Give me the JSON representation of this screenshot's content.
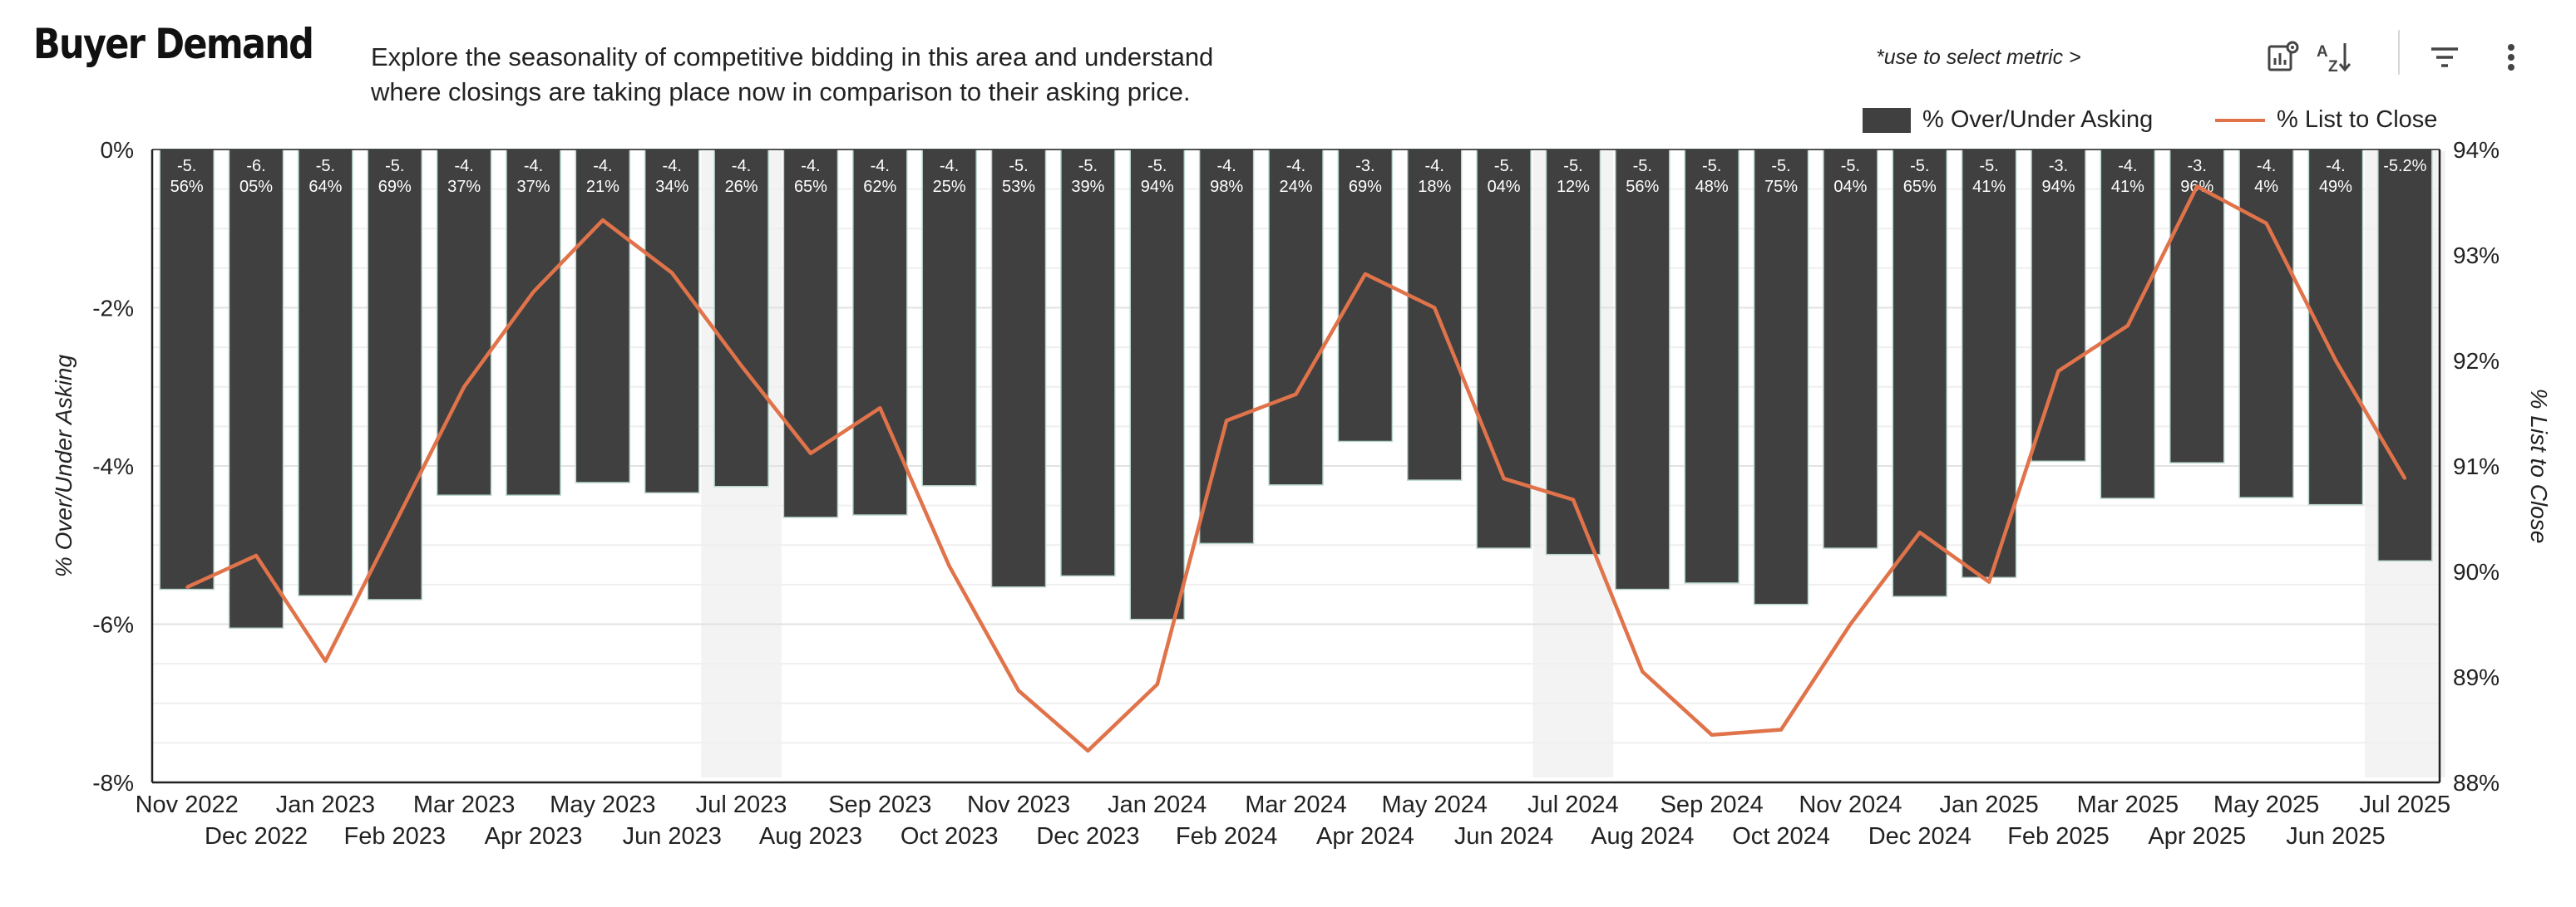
{
  "header": {
    "title": "Buyer Demand",
    "subtitle_line1": "Explore the seasonality of competitive bidding in this area and understand",
    "subtitle_line2": "where closings are taking place now in comparison to their asking price.",
    "metric_hint": "*use to select metric >"
  },
  "toolbar": {
    "icons": [
      "chart-settings-icon",
      "sort-az-icon",
      "filter-icon",
      "more-vert-icon"
    ]
  },
  "colors": {
    "bar": "#404040",
    "line": "#e0734a",
    "highlight": "#f3f3f3",
    "grid": "#e6e6e6"
  },
  "chart_data": {
    "type": "bar+line",
    "title": "Buyer Demand",
    "categories": [
      "Nov 2022",
      "Dec 2022",
      "Jan 2023",
      "Feb 2023",
      "Mar 2023",
      "Apr 2023",
      "May 2023",
      "Jun 2023",
      "Jul 2023",
      "Aug 2023",
      "Sep 2023",
      "Oct 2023",
      "Nov 2023",
      "Dec 2023",
      "Jan 2024",
      "Feb 2024",
      "Mar 2024",
      "Apr 2024",
      "May 2024",
      "Jun 2024",
      "Jul 2024",
      "Aug 2024",
      "Sep 2024",
      "Oct 2024",
      "Nov 2024",
      "Dec 2024",
      "Jan 2025",
      "Feb 2025",
      "Mar 2025",
      "Apr 2025",
      "May 2025",
      "Jun 2025",
      "Jul 2025"
    ],
    "highlighted_categories": [
      "Jul 2023",
      "Jul 2024",
      "Jul 2025"
    ],
    "series": [
      {
        "name": "% Over/Under Asking",
        "type": "bar",
        "axis": "left",
        "values": [
          -5.56,
          -6.05,
          -5.64,
          -5.69,
          -4.37,
          -4.37,
          -4.21,
          -4.34,
          -4.26,
          -4.65,
          -4.62,
          -4.25,
          -5.53,
          -5.39,
          -5.94,
          -4.98,
          -4.24,
          -3.69,
          -4.18,
          -5.04,
          -5.12,
          -5.56,
          -5.48,
          -5.75,
          -5.04,
          -5.65,
          -5.41,
          -3.94,
          -4.41,
          -3.96,
          -4.4,
          -4.49,
          -5.2
        ],
        "labels_line1": [
          "-5.",
          "-6.",
          "-5.",
          "-5.",
          "-4.",
          "-4.",
          "-4.",
          "-4.",
          "-4.",
          "-4.",
          "-4.",
          "-4.",
          "-5.",
          "-5.",
          "-5.",
          "-4.",
          "-4.",
          "-3.",
          "-4.",
          "-5.",
          "-5.",
          "-5.",
          "-5.",
          "-5.",
          "-5.",
          "-5.",
          "-5.",
          "-3.",
          "-4.",
          "-3.",
          "-4.",
          "-4.",
          "-5.2%"
        ],
        "labels_line2": [
          "56%",
          "05%",
          "64%",
          "69%",
          "37%",
          "37%",
          "21%",
          "34%",
          "26%",
          "65%",
          "62%",
          "25%",
          "53%",
          "39%",
          "94%",
          "98%",
          "24%",
          "69%",
          "18%",
          "04%",
          "12%",
          "56%",
          "48%",
          "75%",
          "04%",
          "65%",
          "41%",
          "94%",
          "41%",
          "96%",
          "4%",
          "49%",
          ""
        ]
      },
      {
        "name": "% List to Close",
        "type": "line",
        "axis": "right",
        "values": [
          89.85,
          90.15,
          89.15,
          90.45,
          91.75,
          92.65,
          93.33,
          92.83,
          91.95,
          91.12,
          91.55,
          90.05,
          88.87,
          88.3,
          88.93,
          91.43,
          91.68,
          92.82,
          92.5,
          90.88,
          90.68,
          89.05,
          88.45,
          88.5,
          89.5,
          90.37,
          89.9,
          91.9,
          92.33,
          93.65,
          93.3,
          92.0,
          90.88
        ]
      }
    ],
    "y_left": {
      "label": "% Over/Under Asking",
      "min": -8,
      "max": 0,
      "ticks": [
        "0%",
        "-2%",
        "-4%",
        "-6%",
        "-8%"
      ]
    },
    "y_right": {
      "label": "% List to Close",
      "min": 88,
      "max": 94,
      "ticks": [
        "94%",
        "93%",
        "92%",
        "91%",
        "90%",
        "89%",
        "88%"
      ]
    },
    "legend": [
      {
        "name": "% Over/Under Asking",
        "marker": "bar"
      },
      {
        "name": "% List to Close",
        "marker": "line"
      }
    ],
    "legend_position": "top-right"
  }
}
